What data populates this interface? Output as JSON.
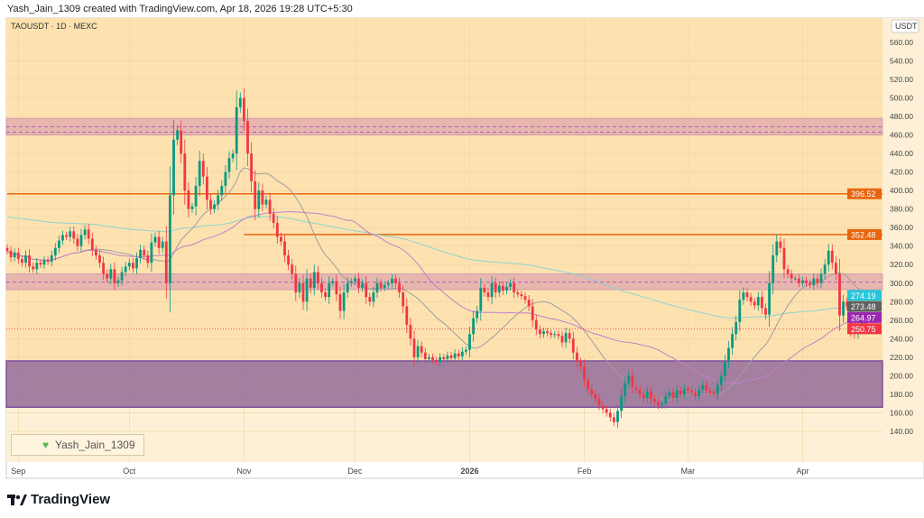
{
  "header": {
    "credit": "Yash_Jain_1309 created with TradingView.com, Apr 18, 2026 19:28 UTC+5:30",
    "symbol": "TAOUSDT · 1D · MEXC"
  },
  "watermark": {
    "text": "Yash_Jain_1309",
    "icon": "green-heart-icon"
  },
  "logo": {
    "text": "TradingView"
  },
  "chart_data": {
    "type": "candlestick",
    "currency_label": "USDT",
    "start_date": "2025-08-29",
    "interval": "1D",
    "ylim": [
      110,
      580
    ],
    "y_ticks": [
      140,
      160,
      180,
      200,
      220,
      240,
      260,
      280,
      300,
      320,
      340,
      360,
      380,
      400,
      420,
      440,
      460,
      480,
      500,
      520,
      540,
      560
    ],
    "x_ticks": [
      {
        "label": "Sep",
        "date": "2025-09-01"
      },
      {
        "label": "Oct",
        "date": "2025-10-01"
      },
      {
        "label": "Nov",
        "date": "2025-11-01"
      },
      {
        "label": "Dec",
        "date": "2025-12-01"
      },
      {
        "label": "2026",
        "date": "2026-01-01"
      },
      {
        "label": "Feb",
        "date": "2026-02-01"
      },
      {
        "label": "Mar",
        "date": "2026-03-01"
      },
      {
        "label": "Apr",
        "date": "2026-04-01"
      }
    ],
    "closes": [
      335,
      328,
      333,
      326,
      322,
      330,
      318,
      315,
      322,
      320,
      325,
      323,
      330,
      338,
      346,
      352,
      350,
      356,
      348,
      340,
      352,
      358,
      348,
      336,
      330,
      322,
      310,
      305,
      315,
      300,
      303,
      312,
      318,
      322,
      316,
      327,
      336,
      330,
      322,
      344,
      350,
      338,
      345,
      300,
      395,
      455,
      465,
      440,
      400,
      380,
      383,
      405,
      432,
      415,
      390,
      380,
      385,
      395,
      405,
      420,
      435,
      440,
      490,
      500,
      475,
      440,
      410,
      380,
      400,
      385,
      390,
      375,
      365,
      350,
      345,
      330,
      320,
      310,
      290,
      300,
      280,
      305,
      295,
      312,
      300,
      290,
      285,
      300,
      302,
      288,
      270,
      290,
      300,
      302,
      305,
      295,
      300,
      285,
      280,
      290,
      300,
      295,
      298,
      300,
      305,
      300,
      290,
      275,
      255,
      240,
      220,
      232,
      225,
      218,
      220,
      217,
      215,
      220,
      218,
      222,
      219,
      224,
      221,
      226,
      228,
      245,
      262,
      270,
      295,
      290,
      285,
      300,
      290,
      297,
      292,
      296,
      300,
      290,
      288,
      286,
      282,
      275,
      260,
      250,
      245,
      248,
      246,
      244,
      245,
      243,
      236,
      246,
      240,
      225,
      215,
      210,
      195,
      185,
      180,
      175,
      168,
      164,
      160,
      155,
      150,
      162,
      178,
      192,
      200,
      188,
      185,
      180,
      176,
      183,
      175,
      172,
      168,
      170,
      178,
      182,
      176,
      184,
      180,
      186,
      184,
      182,
      178,
      185,
      190,
      184,
      182,
      180,
      190,
      200,
      215,
      230,
      245,
      258,
      282,
      290,
      285,
      280,
      276,
      285,
      273,
      266,
      300,
      330,
      345,
      338,
      315,
      310,
      305,
      305,
      300,
      303,
      300,
      298,
      305,
      300,
      310,
      320,
      335,
      322,
      310,
      265,
      280,
      275,
      252,
      245,
      252,
      260,
      250.75
    ],
    "zones": [
      {
        "name": "supply-zone-upper",
        "from": 460,
        "to": 478,
        "color": "#e6b4ae",
        "dashed": [
          463,
          469
        ]
      },
      {
        "name": "zone-middle",
        "from": 293,
        "to": 310,
        "color": "#e6b4ae",
        "dashed": [
          301
        ]
      },
      {
        "name": "demand-zone",
        "from": 166,
        "to": 216,
        "color": "#a07aa0"
      }
    ],
    "levels": [
      {
        "value": 396.52,
        "label": "396.52",
        "color": "#e8650f",
        "start_date": "2025-08-29"
      },
      {
        "value": 352.48,
        "label": "352.48",
        "color": "#e8650f",
        "start_date": "2025-11-01"
      }
    ],
    "indicators": [
      {
        "label": "274.19",
        "color": "#26c6da",
        "line": "#8fd3cf",
        "period": 200
      },
      {
        "label": "273.48",
        "color": "#616161",
        "line": "#9e9e9e",
        "period": 20
      },
      {
        "label": "264.97",
        "color": "#9c27b0",
        "line": "#c080c8",
        "period": 50
      }
    ],
    "last_price": {
      "value": 250.75,
      "label": "250.75",
      "color": "#f23645"
    },
    "colors": {
      "up": "#089981",
      "down": "#f23645",
      "background": "#fde2b0"
    }
  }
}
